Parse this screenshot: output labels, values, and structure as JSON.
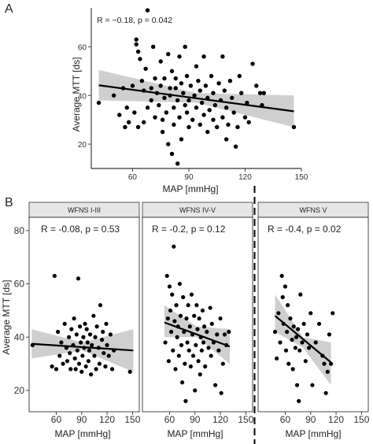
{
  "panel_a_letter": "A",
  "panel_b_letter": "B",
  "chart_data": [
    {
      "type": "scatter",
      "panel": "A",
      "title": "",
      "xlabel": "MAP [mmHg]",
      "ylabel": "Average MTT [ds]",
      "annotation": "R = −0.18, p = 0.042",
      "xlim": [
        38,
        150
      ],
      "ylim": [
        10,
        76
      ],
      "xticks": [
        60,
        90,
        120,
        150
      ],
      "yticks": [
        20,
        40,
        60
      ],
      "grid": false,
      "regression": {
        "x": [
          42,
          146
        ],
        "y": [
          44.2,
          33.5
        ]
      },
      "ci_band": {
        "x": [
          42,
          94,
          146
        ],
        "lower": [
          38.0,
          37.0,
          27.0
        ],
        "upper": [
          50.5,
          41.0,
          40.0
        ]
      },
      "points": [
        [
          42,
          37
        ],
        [
          50,
          40
        ],
        [
          53,
          32
        ],
        [
          55,
          43
        ],
        [
          56,
          27
        ],
        [
          57,
          35
        ],
        [
          58,
          29
        ],
        [
          60,
          44
        ],
        [
          61,
          33
        ],
        [
          62,
          63
        ],
        [
          62,
          61
        ],
        [
          63,
          58
        ],
        [
          63,
          27
        ],
        [
          64,
          55
        ],
        [
          65,
          46
        ],
        [
          66,
          42
        ],
        [
          66,
          29
        ],
        [
          67,
          51
        ],
        [
          68,
          75
        ],
        [
          68,
          35
        ],
        [
          70,
          43
        ],
        [
          70,
          38
        ],
        [
          71,
          60
        ],
        [
          72,
          47
        ],
        [
          72,
          31
        ],
        [
          73,
          41
        ],
        [
          74,
          36
        ],
        [
          75,
          54
        ],
        [
          75,
          44
        ],
        [
          76,
          30
        ],
        [
          76,
          25
        ],
        [
          77,
          47
        ],
        [
          77,
          39
        ],
        [
          78,
          33
        ],
        [
          79,
          57
        ],
        [
          79,
          20
        ],
        [
          80,
          43
        ],
        [
          80,
          40
        ],
        [
          81,
          50
        ],
        [
          81,
          16
        ],
        [
          82,
          35
        ],
        [
          82,
          28
        ],
        [
          83,
          47
        ],
        [
          83,
          43
        ],
        [
          84,
          12
        ],
        [
          84,
          38
        ],
        [
          85,
          56
        ],
        [
          85,
          31
        ],
        [
          86,
          45
        ],
        [
          86,
          22
        ],
        [
          87,
          41
        ],
        [
          88,
          36
        ],
        [
          88,
          60
        ],
        [
          89,
          48
        ],
        [
          89,
          33
        ],
        [
          90,
          38
        ],
        [
          90,
          27
        ],
        [
          91,
          44
        ],
        [
          92,
          30
        ],
        [
          93,
          40
        ],
        [
          94,
          35
        ],
        [
          94,
          52
        ],
        [
          95,
          46
        ],
        [
          96,
          42
        ],
        [
          96,
          28
        ],
        [
          97,
          37
        ],
        [
          98,
          56
        ],
        [
          98,
          32
        ],
        [
          99,
          44
        ],
        [
          100,
          39
        ],
        [
          100,
          25
        ],
        [
          101,
          34
        ],
        [
          102,
          48
        ],
        [
          103,
          41
        ],
        [
          103,
          30
        ],
        [
          104,
          36
        ],
        [
          105,
          27
        ],
        [
          106,
          45
        ],
        [
          107,
          38
        ],
        [
          108,
          56
        ],
        [
          108,
          31
        ],
        [
          109,
          42
        ],
        [
          110,
          22
        ],
        [
          110,
          35
        ],
        [
          111,
          28
        ],
        [
          112,
          46
        ],
        [
          113,
          39
        ],
        [
          114,
          33
        ],
        [
          115,
          19
        ],
        [
          116,
          27
        ],
        [
          117,
          48
        ],
        [
          118,
          41
        ],
        [
          120,
          31
        ],
        [
          121,
          37
        ],
        [
          122,
          29
        ],
        [
          124,
          53
        ],
        [
          126,
          44
        ],
        [
          128,
          41
        ],
        [
          129,
          36
        ],
        [
          130,
          41
        ],
        [
          146,
          27
        ]
      ]
    },
    {
      "type": "scatter",
      "panel": "B",
      "facet": "WFNS I-III",
      "xlabel": "MAP [mmHg]",
      "ylabel": "Average MTT [ds]",
      "annotation": "R = -0.08, p = 0.53",
      "xlim": [
        28,
        158
      ],
      "ylim": [
        12,
        85
      ],
      "xticks": [
        60,
        90,
        120,
        150
      ],
      "yticks": [
        20,
        40,
        60,
        80
      ],
      "grid": false,
      "regression": {
        "x": [
          31,
          151
        ],
        "y": [
          37.5,
          35.0
        ]
      },
      "ci_band": {
        "x": [
          31,
          91,
          151
        ],
        "lower": [
          32,
          35,
          27
        ],
        "upper": [
          43,
          38,
          43
        ]
      },
      "points": [
        [
          32,
          37
        ],
        [
          55,
          29
        ],
        [
          58,
          63
        ],
        [
          60,
          28
        ],
        [
          62,
          42
        ],
        [
          64,
          33
        ],
        [
          66,
          38
        ],
        [
          68,
          30
        ],
        [
          70,
          45
        ],
        [
          72,
          36
        ],
        [
          73,
          31
        ],
        [
          75,
          40
        ],
        [
          76,
          34
        ],
        [
          77,
          28
        ],
        [
          78,
          43
        ],
        [
          80,
          37
        ],
        [
          81,
          47
        ],
        [
          82,
          32
        ],
        [
          83,
          28
        ],
        [
          84,
          41
        ],
        [
          85,
          35
        ],
        [
          86,
          62
        ],
        [
          87,
          30
        ],
        [
          88,
          44
        ],
        [
          89,
          38
        ],
        [
          90,
          27
        ],
        [
          91,
          33
        ],
        [
          92,
          40
        ],
        [
          93,
          36
        ],
        [
          94,
          45
        ],
        [
          95,
          29
        ],
        [
          96,
          43
        ],
        [
          97,
          38
        ],
        [
          98,
          31
        ],
        [
          99,
          35
        ],
        [
          100,
          41
        ],
        [
          101,
          26
        ],
        [
          102,
          37
        ],
        [
          104,
          48
        ],
        [
          105,
          33
        ],
        [
          106,
          40
        ],
        [
          107,
          28
        ],
        [
          108,
          44
        ],
        [
          110,
          36
        ],
        [
          111,
          30
        ],
        [
          112,
          52
        ],
        [
          114,
          39
        ],
        [
          115,
          42
        ],
        [
          116,
          34
        ],
        [
          118,
          29
        ],
        [
          119,
          45
        ],
        [
          120,
          37
        ],
        [
          122,
          33
        ],
        [
          124,
          41
        ],
        [
          126,
          28
        ],
        [
          128,
          35
        ],
        [
          147,
          27
        ]
      ]
    },
    {
      "type": "scatter",
      "panel": "B",
      "facet": "WFNS IV-V",
      "xlabel": "MAP [mmHg]",
      "annotation": "R = -0.2, p = 0.12",
      "xlim": [
        28,
        158
      ],
      "ylim": [
        12,
        85
      ],
      "xticks": [
        60,
        90,
        120,
        150
      ],
      "grid": false,
      "regression": {
        "x": [
          54,
          131
        ],
        "y": [
          45.5,
          36.5
        ]
      },
      "ci_band": {
        "x": [
          54,
          92,
          131
        ],
        "lower": [
          40,
          40,
          30
        ],
        "upper": [
          52,
          44,
          43
        ]
      },
      "points": [
        [
          55,
          38
        ],
        [
          57,
          63
        ],
        [
          58,
          47
        ],
        [
          59,
          31
        ],
        [
          60,
          59
        ],
        [
          61,
          50
        ],
        [
          62,
          42
        ],
        [
          63,
          56
        ],
        [
          64,
          35
        ],
        [
          65,
          74
        ],
        [
          66,
          46
        ],
        [
          67,
          28
        ],
        [
          68,
          52
        ],
        [
          69,
          40
        ],
        [
          70,
          44
        ],
        [
          71,
          33
        ],
        [
          72,
          60
        ],
        [
          73,
          48
        ],
        [
          74,
          37
        ],
        [
          75,
          23
        ],
        [
          76,
          55
        ],
        [
          77,
          42
        ],
        [
          78,
          30
        ],
        [
          79,
          16
        ],
        [
          80,
          47
        ],
        [
          81,
          38
        ],
        [
          82,
          52
        ],
        [
          83,
          35
        ],
        [
          84,
          44
        ],
        [
          85,
          29
        ],
        [
          86,
          56
        ],
        [
          87,
          41
        ],
        [
          88,
          33
        ],
        [
          89,
          48
        ],
        [
          90,
          20
        ],
        [
          91,
          37
        ],
        [
          92,
          52
        ],
        [
          93,
          43
        ],
        [
          94,
          31
        ],
        [
          95,
          47
        ],
        [
          96,
          26
        ],
        [
          97,
          40
        ],
        [
          98,
          35
        ],
        [
          99,
          50
        ],
        [
          100,
          38
        ],
        [
          101,
          44
        ],
        [
          102,
          29
        ],
        [
          104,
          42
        ],
        [
          106,
          36
        ],
        [
          108,
          51
        ],
        [
          109,
          33
        ],
        [
          110,
          45
        ],
        [
          112,
          38
        ],
        [
          114,
          22
        ],
        [
          116,
          41
        ],
        [
          118,
          35
        ],
        [
          120,
          47
        ],
        [
          121,
          19
        ],
        [
          123,
          30
        ],
        [
          125,
          41
        ],
        [
          127,
          37
        ],
        [
          130,
          42
        ]
      ]
    },
    {
      "type": "scatter",
      "panel": "B",
      "facet": "WFNS V",
      "xlabel": "MAP [mmHg]",
      "annotation": "R = -0.4, p = 0.02",
      "xlim": [
        28,
        158
      ],
      "ylim": [
        12,
        85
      ],
      "xticks": [
        60,
        90,
        120,
        150
      ],
      "grid": false,
      "regression": {
        "x": [
          48,
          114
        ],
        "y": [
          48.0,
          30.5
        ]
      },
      "ci_band": {
        "x": [
          48,
          81,
          114
        ],
        "lower": [
          42,
          36,
          22
        ],
        "upper": [
          56,
          40,
          38
        ]
      },
      "points": [
        [
          48,
          42
        ],
        [
          50,
          32
        ],
        [
          52,
          49
        ],
        [
          54,
          38
        ],
        [
          56,
          63
        ],
        [
          57,
          55
        ],
        [
          58,
          45
        ],
        [
          60,
          59
        ],
        [
          61,
          35
        ],
        [
          62,
          42
        ],
        [
          63,
          52
        ],
        [
          64,
          30
        ],
        [
          66,
          47
        ],
        [
          68,
          39
        ],
        [
          69,
          28
        ],
        [
          70,
          44
        ],
        [
          72,
          36
        ],
        [
          73,
          40
        ],
        [
          74,
          22
        ],
        [
          75,
          43
        ],
        [
          76,
          16
        ],
        [
          77,
          35
        ],
        [
          78,
          56
        ],
        [
          80,
          38
        ],
        [
          82,
          45
        ],
        [
          84,
          31
        ],
        [
          86,
          41
        ],
        [
          88,
          36
        ],
        [
          90,
          49
        ],
        [
          92,
          22
        ],
        [
          96,
          38
        ],
        [
          100,
          45
        ],
        [
          104,
          33
        ],
        [
          106,
          30
        ],
        [
          108,
          19
        ],
        [
          110,
          27
        ],
        [
          112,
          41
        ],
        [
          114,
          30
        ],
        [
          116,
          49
        ]
      ]
    }
  ]
}
